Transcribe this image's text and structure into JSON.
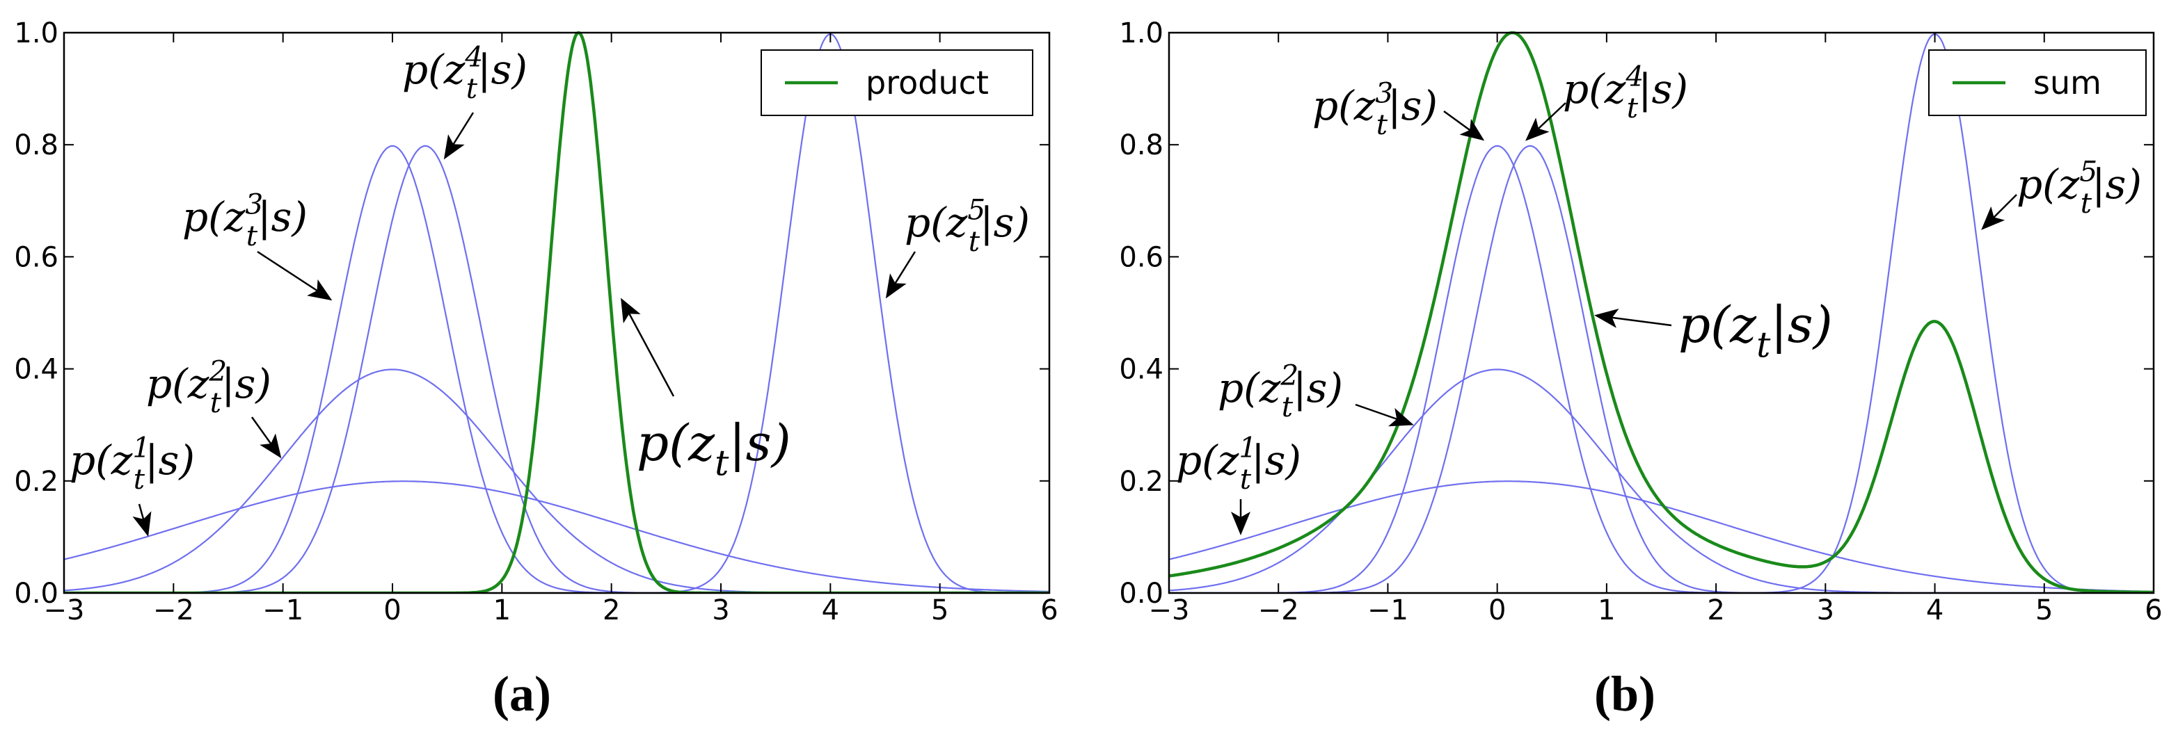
{
  "chart_data": [
    {
      "type": "line",
      "panel_label": "(a)",
      "xlim": [
        -3,
        6
      ],
      "ylim": [
        0,
        1
      ],
      "x_ticks": [
        "−3",
        "−2",
        "−1",
        "0",
        "1",
        "2",
        "3",
        "4",
        "5",
        "6"
      ],
      "y_ticks": [
        "0.0",
        "0.2",
        "0.4",
        "0.6",
        "0.8",
        "1.0"
      ],
      "grid": false,
      "legend": {
        "position": "top-right",
        "entries": [
          "product"
        ]
      },
      "component_curves": [
        {
          "mu": 0.1,
          "sigma": 2.0,
          "color": "#6f6ff0"
        },
        {
          "mu": 0.0,
          "sigma": 1.0,
          "color": "#6f6ff0"
        },
        {
          "mu": 0.0,
          "sigma": 0.5,
          "color": "#6f6ff0"
        },
        {
          "mu": 0.3,
          "sigma": 0.5,
          "color": "#6f6ff0"
        },
        {
          "mu": 4.0,
          "sigma": 0.4,
          "color": "#6f6ff0"
        }
      ],
      "combined_curve": {
        "name": "product",
        "mode": "product",
        "peak_x": 1.7,
        "peak_y": 1.0,
        "sigma": 0.255,
        "color": "#1a8a1a"
      },
      "annotations": [
        {
          "base": "p(z",
          "sub": "t",
          "sup": "1",
          "rest": "|s)"
        },
        {
          "base": "p(z",
          "sub": "t",
          "sup": "2",
          "rest": "|s)"
        },
        {
          "base": "p(z",
          "sub": "t",
          "sup": "3",
          "rest": "|s)"
        },
        {
          "base": "p(z",
          "sub": "t",
          "sup": "4",
          "rest": "|s)"
        },
        {
          "base": "p(z",
          "sub": "t",
          "sup": "5",
          "rest": "|s)"
        },
        {
          "base": "p(z",
          "sub": "t",
          "sup": "",
          "rest": "|s)"
        }
      ]
    },
    {
      "type": "line",
      "panel_label": "(b)",
      "xlim": [
        -3,
        6
      ],
      "ylim": [
        0,
        1
      ],
      "x_ticks": [
        "−3",
        "−2",
        "−1",
        "0",
        "1",
        "2",
        "3",
        "4",
        "5",
        "6"
      ],
      "y_ticks": [
        "0.0",
        "0.2",
        "0.4",
        "0.6",
        "0.8",
        "1.0"
      ],
      "grid": false,
      "legend": {
        "position": "top-right",
        "entries": [
          "sum"
        ]
      },
      "component_curves": [
        {
          "mu": 0.1,
          "sigma": 2.0,
          "color": "#6f6ff0"
        },
        {
          "mu": 0.0,
          "sigma": 1.0,
          "color": "#6f6ff0"
        },
        {
          "mu": 0.0,
          "sigma": 0.5,
          "color": "#6f6ff0"
        },
        {
          "mu": 0.3,
          "sigma": 0.5,
          "color": "#6f6ff0"
        },
        {
          "mu": 4.0,
          "sigma": 0.4,
          "color": "#6f6ff0"
        }
      ],
      "combined_curve": {
        "name": "sum",
        "mode": "sum",
        "max_y": 1.0,
        "color": "#1a8a1a"
      },
      "annotations": [
        {
          "base": "p(z",
          "sub": "t",
          "sup": "1",
          "rest": "|s)"
        },
        {
          "base": "p(z",
          "sub": "t",
          "sup": "2",
          "rest": "|s)"
        },
        {
          "base": "p(z",
          "sub": "t",
          "sup": "3",
          "rest": "|s)"
        },
        {
          "base": "p(z",
          "sub": "t",
          "sup": "4",
          "rest": "|s)"
        },
        {
          "base": "p(z",
          "sub": "t",
          "sup": "5",
          "rest": "|s)"
        },
        {
          "base": "p(z",
          "sub": "t",
          "sup": "",
          "rest": "|s)"
        }
      ]
    }
  ]
}
